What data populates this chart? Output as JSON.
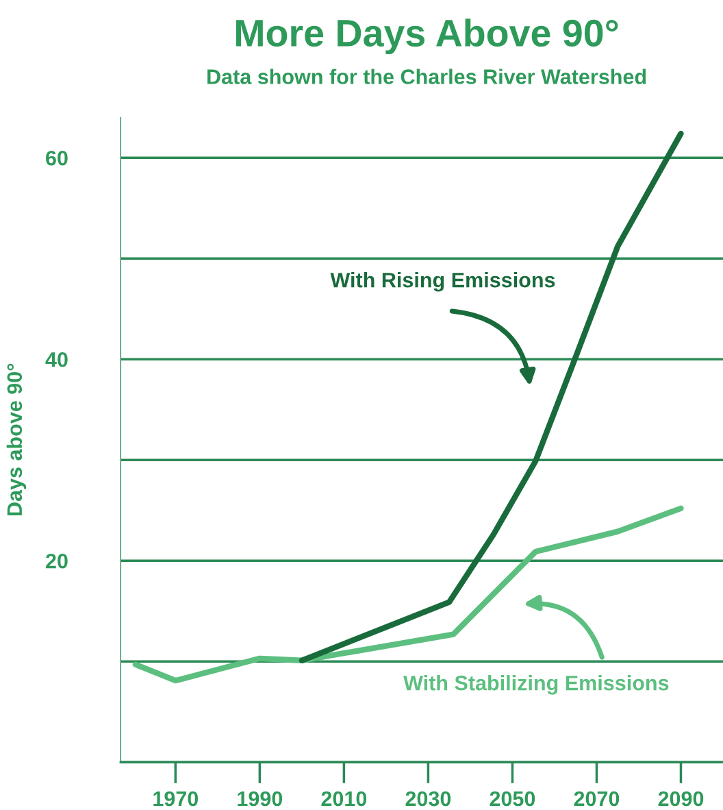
{
  "chart_data": {
    "type": "line",
    "title": "More Days Above 90°",
    "subtitle": "Data shown for the Charles River Watershed",
    "ylabel": "Days above 90°",
    "series": [
      {
        "name": "With Stabilizing Emissions",
        "color": "#5cbf7f",
        "x": [
          1960.5,
          1970,
          1990,
          2000,
          2036,
          2055.5,
          2075,
          2090
        ],
        "values": [
          9.7,
          8.1,
          10.3,
          10.1,
          12.7,
          20.9,
          22.9,
          25.2
        ]
      },
      {
        "name": "With Rising Emissions",
        "color": "#1a6b3c",
        "x": [
          2000,
          2035,
          2045.5,
          2055.5,
          2065,
          2075,
          2090
        ],
        "values": [
          10.1,
          15.9,
          22.6,
          29.9,
          40.2,
          51.2,
          62.4
        ]
      }
    ],
    "xlim": [
      1957,
      2100
    ],
    "xticks": [
      1970,
      1990,
      2010,
      2030,
      2050,
      2070,
      2090
    ],
    "ylim": [
      0,
      64
    ],
    "yticks": [
      {
        "value": 0,
        "label": null
      },
      {
        "value": 10,
        "label": null
      },
      20,
      {
        "value": 30,
        "label": null
      },
      40,
      {
        "value": 50,
        "label": null
      },
      60
    ],
    "grid": "y",
    "line_style": "solid",
    "marker": "none"
  }
}
